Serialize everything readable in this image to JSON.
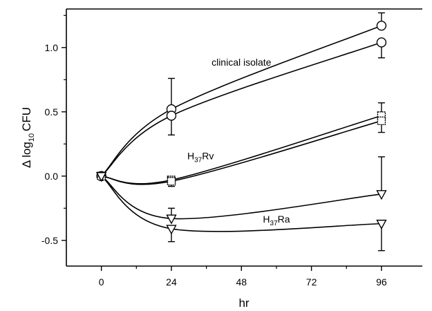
{
  "chart_data": {
    "type": "line",
    "title": "",
    "xlabel": "hr",
    "ylabel_parts": {
      "delta": "Δ",
      "log": "log",
      "sub": "10",
      "unit": "CFU"
    },
    "xlim": [
      -12,
      110
    ],
    "ylim": [
      -0.7,
      1.3
    ],
    "xticks": [
      0,
      24,
      48,
      72,
      96
    ],
    "xtick_labels": [
      "0",
      "24",
      "48",
      "72",
      "96"
    ],
    "yticks": [
      -0.5,
      0.0,
      0.5,
      1.0
    ],
    "ytick_labels": [
      "-0.5",
      "0.0",
      "0.5",
      "1.0"
    ],
    "grid": false,
    "series": [
      {
        "name": "clinical isolate",
        "group": "clinical isolate",
        "marker": "circle",
        "x": [
          0,
          24,
          96
        ],
        "y": [
          0.0,
          0.52,
          1.17
        ],
        "errors": [
          null,
          null,
          {
            "low": 1.17,
            "high": 1.27
          }
        ]
      },
      {
        "name": "clinical isolate",
        "group": "clinical isolate",
        "marker": "circle",
        "x": [
          0,
          24,
          96
        ],
        "y": [
          0.0,
          0.47,
          1.04
        ],
        "errors": [
          null,
          {
            "low": 0.32,
            "high": 0.76
          },
          {
            "low": 0.92,
            "high": 1.04
          }
        ]
      },
      {
        "name": "H37Rv",
        "group": "H37Rv",
        "marker": "square",
        "x": [
          0,
          24,
          96
        ],
        "y": [
          0.0,
          -0.03,
          0.47
        ],
        "errors": [
          null,
          null,
          {
            "low": 0.47,
            "high": 0.57
          }
        ]
      },
      {
        "name": "H37Rv",
        "group": "H37Rv",
        "marker": "square",
        "x": [
          0,
          24,
          96
        ],
        "y": [
          0.0,
          -0.04,
          0.43
        ],
        "errors": [
          null,
          {
            "low": -0.08,
            "high": -0.04
          },
          {
            "low": 0.34,
            "high": 0.43
          }
        ]
      },
      {
        "name": "H37Ra",
        "group": "H37Ra",
        "marker": "triangle",
        "x": [
          0,
          24,
          96
        ],
        "y": [
          0.0,
          -0.33,
          -0.14
        ],
        "errors": [
          null,
          {
            "low": -0.33,
            "high": -0.25
          },
          {
            "low": -0.14,
            "high": 0.15
          }
        ]
      },
      {
        "name": "H37Ra",
        "group": "H37Ra",
        "marker": "triangle",
        "x": [
          0,
          24,
          96
        ],
        "y": [
          0.0,
          -0.41,
          -0.37
        ],
        "errors": [
          null,
          {
            "low": -0.51,
            "high": -0.41
          },
          {
            "low": -0.58,
            "high": -0.37
          }
        ]
      }
    ],
    "annotations": [
      {
        "id": "clinical",
        "text": "clinical isolate",
        "x": 48,
        "y": 0.86
      },
      {
        "id": "rv",
        "main": "H",
        "sub": "37",
        "tail": "Rv",
        "x": 34,
        "y": 0.13
      },
      {
        "id": "ra",
        "main": "H",
        "sub": "37",
        "tail": "Ra",
        "x": 60,
        "y": -0.36
      }
    ]
  }
}
